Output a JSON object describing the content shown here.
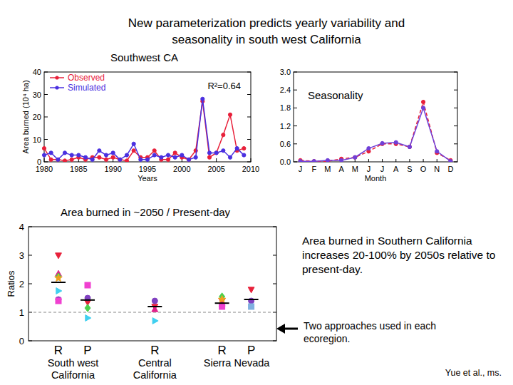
{
  "slide": {
    "title": "New parameterization predicts yearly variability and seasonality in south west California",
    "finding": "Area burned in Southern California increases 20-100% by 2050s relative to present-day.",
    "approaches_note": "Two approaches used in each ecoregion.",
    "credit": "Yue et al., ms."
  },
  "chart_data": [
    {
      "type": "line",
      "title": "Southwest CA",
      "xlabel": "Years",
      "ylabel": "Area burned (10⁴ ha)",
      "annotation": "R²=0.64",
      "x": [
        1980,
        1981,
        1982,
        1983,
        1984,
        1985,
        1986,
        1987,
        1988,
        1989,
        1990,
        1991,
        1992,
        1993,
        1994,
        1995,
        1996,
        1997,
        1998,
        1999,
        2000,
        2001,
        2002,
        2003,
        2004,
        2005,
        2006,
        2007,
        2008,
        2009
      ],
      "series": [
        {
          "name": "Observed",
          "color": "#e8203a",
          "marker": "circle",
          "line_style": "solid",
          "values": [
            6,
            1,
            1,
            0.5,
            1,
            2,
            1,
            2,
            2,
            1,
            2,
            1,
            0.5,
            5,
            2,
            2,
            5,
            1,
            1,
            4,
            2,
            1,
            5,
            27,
            2,
            4,
            12,
            21,
            5,
            6
          ]
        },
        {
          "name": "Simulated",
          "color": "#4a30e0",
          "marker": "circle",
          "line_style": "solid",
          "values": [
            3,
            4,
            1,
            4,
            3,
            3,
            2,
            1,
            5,
            3,
            4,
            1,
            3,
            8,
            1,
            1,
            3,
            2,
            3,
            2,
            3,
            1,
            2,
            28,
            4,
            4,
            5,
            2,
            6,
            3
          ]
        }
      ],
      "xlim": [
        1980,
        2010
      ],
      "xticks": [
        1980,
        1985,
        1990,
        1995,
        2000,
        2005,
        2010
      ],
      "ylim": [
        0,
        40
      ],
      "yticks": [
        0,
        10,
        20,
        30,
        40
      ],
      "legend": "upper left"
    },
    {
      "type": "line",
      "title": "Seasonality",
      "xlabel": "Month",
      "categories": [
        "J",
        "F",
        "M",
        "A",
        "M",
        "J",
        "J",
        "A",
        "S",
        "O",
        "N",
        "D"
      ],
      "series": [
        {
          "color": "#e8203a",
          "marker": "circle",
          "line_style": "dashed",
          "values": [
            0.05,
            0.02,
            0.02,
            0.1,
            0.15,
            0.35,
            0.6,
            0.6,
            0.5,
            2.0,
            0.3,
            0.05
          ]
        },
        {
          "color": "#7040d8",
          "marker": "circle",
          "line_style": "solid",
          "values": [
            0.02,
            0.02,
            0.05,
            0.05,
            0.15,
            0.45,
            0.62,
            0.65,
            0.5,
            1.8,
            0.35,
            0.02
          ]
        }
      ],
      "ylim": [
        0,
        3
      ],
      "yticks": [
        {
          "value": 0,
          "label": "0.0"
        },
        0.6,
        1.2,
        1.8,
        2.4,
        {
          "value": 3,
          "label": "3.0"
        }
      ]
    },
    {
      "type": "scatter",
      "title": "Area burned in ~2050 / Present-day",
      "ylabel": "Ratios",
      "groups": [
        {
          "label": "South west California",
          "categories": [
            "R",
            "P"
          ]
        },
        {
          "label": "Central California",
          "categories": [
            "R"
          ]
        },
        {
          "label": "Sierra Nevada",
          "categories": [
            "R",
            "P"
          ]
        }
      ],
      "series": [
        {
          "color": "#e8203a",
          "marker": "triangle-down",
          "values": [
            3.0,
            1.35,
            1.2,
            1.4,
            1.8
          ]
        },
        {
          "color": "#e0208a",
          "marker": "triangle-up",
          "values": [
            2.35,
            null,
            1.1,
            1.3,
            null
          ]
        },
        {
          "color": "#4cd04c",
          "marker": "diamond",
          "values": [
            2.25,
            1.15,
            null,
            1.55,
            null
          ]
        },
        {
          "color": "#f0a020",
          "marker": "star",
          "values": [
            2.2,
            null,
            null,
            1.45,
            null
          ]
        },
        {
          "color": "#40d0f0",
          "marker": "triangle-right",
          "values": [
            1.75,
            0.8,
            0.7,
            null,
            null
          ]
        },
        {
          "color": "#8040c0",
          "marker": "circle",
          "values": [
            1.45,
            1.5,
            1.4,
            null,
            1.4
          ]
        },
        {
          "color": "#f040d0",
          "marker": "square",
          "values": [
            1.4,
            1.95,
            null,
            1.2,
            null
          ]
        },
        {
          "color": "#80b0e0",
          "marker": "square",
          "values": [
            null,
            null,
            null,
            null,
            1.2
          ]
        },
        {
          "color": "#000000",
          "marker": "dash",
          "values": [
            2.05,
            1.43,
            1.2,
            1.32,
            1.45
          ]
        }
      ],
      "reference_line": 1,
      "ylim": [
        0,
        4
      ],
      "yticks": [
        0,
        1,
        2,
        3,
        4
      ]
    }
  ]
}
